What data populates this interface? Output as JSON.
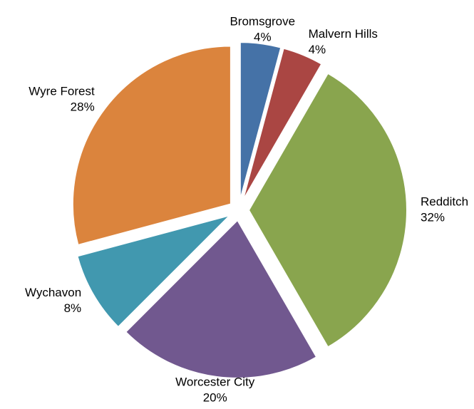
{
  "chart_data": {
    "type": "pie",
    "categories": [
      "Bromsgrove",
      "Malvern Hills",
      "Redditch",
      "Worcester City",
      "Wychavon",
      "Wyre Forest"
    ],
    "values": [
      4,
      4,
      32,
      20,
      8,
      28
    ],
    "value_labels": [
      "4%",
      "4%",
      "32%",
      "20%",
      "8%",
      "28%"
    ],
    "colors": [
      "#4572a7",
      "#aa4643",
      "#89a54e",
      "#71588f",
      "#4198af",
      "#db843d"
    ]
  }
}
